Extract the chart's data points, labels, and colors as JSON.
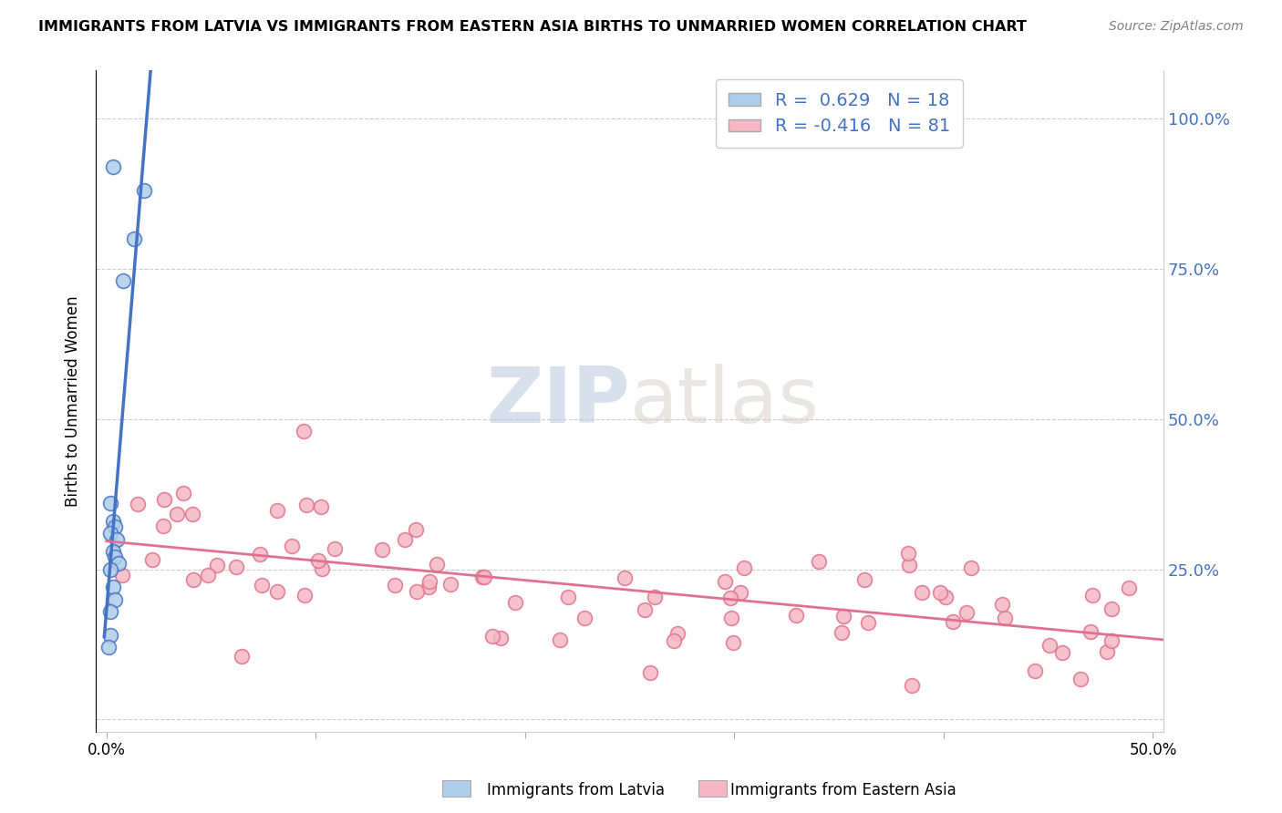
{
  "title": "IMMIGRANTS FROM LATVIA VS IMMIGRANTS FROM EASTERN ASIA BIRTHS TO UNMARRIED WOMEN CORRELATION CHART",
  "source": "Source: ZipAtlas.com",
  "ylabel": "Births to Unmarried Women",
  "R1": 0.629,
  "N1": 18,
  "R2": -0.416,
  "N2": 81,
  "color_blue": "#AECDE8",
  "color_pink": "#F5B8C4",
  "color_blue_line": "#4472C4",
  "color_pink_line": "#E07090",
  "color_ytick": "#4472C4",
  "background_color": "#FFFFFF",
  "watermark_zip": "ZIP",
  "watermark_atlas": "atlas",
  "grid_color": "#CCCCCC",
  "legend_label1": "Immigrants from Latvia",
  "legend_label2": "Immigrants from Eastern Asia",
  "lv_x": [
    0.003,
    0.018,
    0.013,
    0.008,
    0.002,
    0.003,
    0.004,
    0.002,
    0.005,
    0.003,
    0.004,
    0.006,
    0.002,
    0.003,
    0.004,
    0.002,
    0.002,
    0.001
  ],
  "lv_y": [
    0.92,
    0.88,
    0.8,
    0.73,
    0.36,
    0.33,
    0.32,
    0.31,
    0.3,
    0.28,
    0.27,
    0.26,
    0.25,
    0.22,
    0.2,
    0.18,
    0.14,
    0.12
  ],
  "ea_seed": 42,
  "xlim_max": 0.505,
  "ylim_min": -0.02,
  "ylim_max": 1.08
}
